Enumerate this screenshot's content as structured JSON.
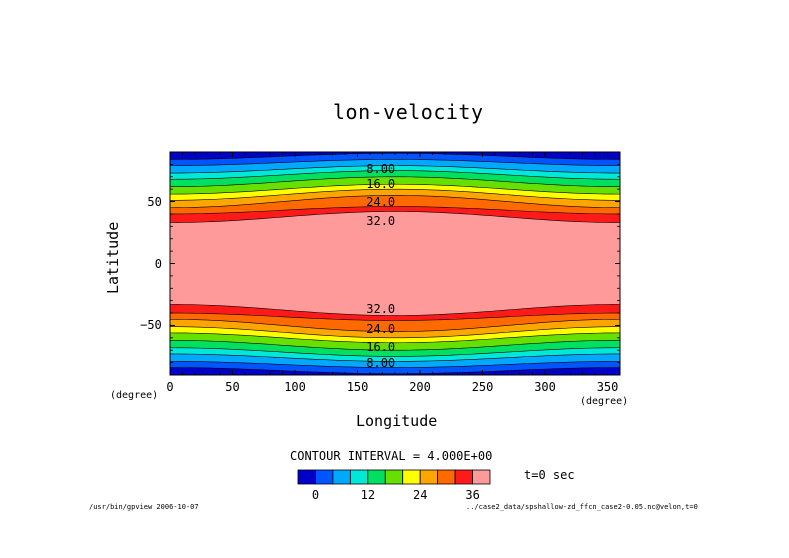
{
  "chart_data": {
    "type": "contour",
    "title": "lon-velocity",
    "xlabel": "Longitude",
    "ylabel": "Latitude",
    "x_unit": "(degree)",
    "y_unit": "(degree)",
    "xlim": [
      0,
      360
    ],
    "ylim": [
      -90,
      90
    ],
    "x_ticks": [
      "0",
      "50",
      "100",
      "150",
      "200",
      "250",
      "300",
      "350"
    ],
    "y_ticks": [
      {
        "value": 50,
        "label": "50"
      },
      {
        "value": 0,
        "label": "0"
      },
      {
        "value": -50,
        "label": "−50"
      }
    ],
    "contour_interval_text": "CONTOUR INTERVAL = 4.000E+00",
    "contour_levels": [
      0,
      4,
      8,
      12,
      16,
      20,
      24,
      28,
      32,
      36
    ],
    "contour_labels": [
      {
        "text": "8.00",
        "lat": 76
      },
      {
        "text": "16.0",
        "lat": 64
      },
      {
        "text": "24.0",
        "lat": 50
      },
      {
        "text": "32.0",
        "lat": 34
      },
      {
        "text": "32.0",
        "lat": -37
      },
      {
        "text": "24.0",
        "lat": -53
      },
      {
        "text": "16.0",
        "lat": -67
      },
      {
        "text": "8.00",
        "lat": -80
      }
    ],
    "colorbar": {
      "colors": [
        "#0000c8",
        "#0055ff",
        "#00a8ff",
        "#00e8d8",
        "#00e060",
        "#66e000",
        "#ffff00",
        "#ffa500",
        "#ff6a00",
        "#ff1a1a",
        "#ff9a9a"
      ],
      "tick_labels": [
        {
          "value": 0,
          "label": "0"
        },
        {
          "value": 12,
          "label": "12"
        },
        {
          "value": 24,
          "label": "24"
        },
        {
          "value": 36,
          "label": "36"
        }
      ]
    },
    "band_colors": [
      "#0000c8",
      "#0055ff",
      "#00a8ff",
      "#00e8d8",
      "#00e060",
      "#66e000",
      "#ffff00",
      "#ffa500",
      "#ff6a00",
      "#ff1a1a",
      "#ff9a9a"
    ],
    "band_boundaries_lat_at_lon0": [
      84,
      79,
      73,
      68,
      62,
      56,
      51,
      45,
      40,
      33,
      27
    ],
    "band_boundaries_lat_at_lon180": [
      89,
      84,
      79,
      75,
      70,
      64,
      60,
      55,
      46,
      42,
      35
    ],
    "time_label": "t=0 sec"
  },
  "footer": {
    "left": "/usr/bin/gpview  2006-10-07",
    "right": "../case2_data/spshallow-zd_ffcn_case2-0.05.nc@velon,t=0"
  }
}
